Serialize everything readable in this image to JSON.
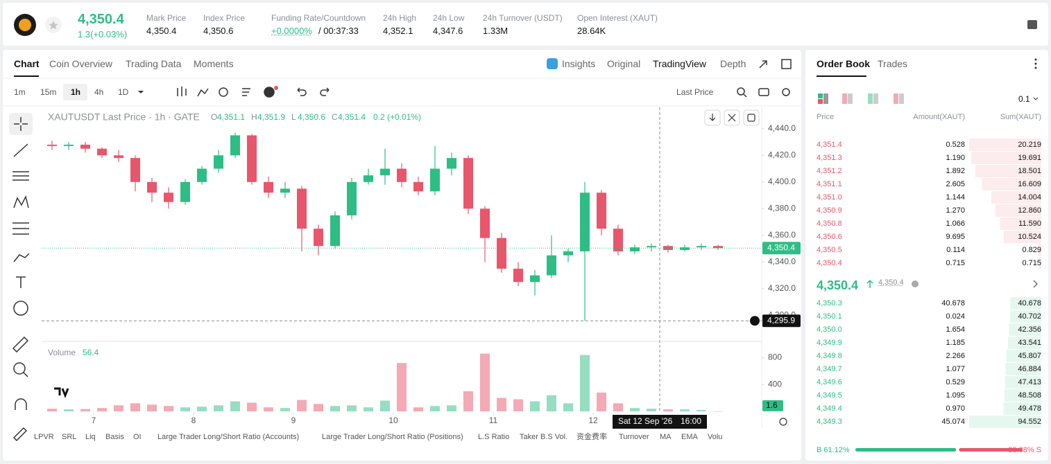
{
  "header": {
    "price": "4,350.4",
    "change": "1.3(+0.03%)",
    "stats": [
      {
        "label": "Mark Price",
        "value": "4,350.4"
      },
      {
        "label": "Index Price",
        "value": "4,350.6"
      },
      {
        "label": "Funding Rate/Countdown",
        "value": "+0.0000%",
        "extra": "/ 00:37:33"
      },
      {
        "label": "24h High",
        "value": "4,352.1"
      },
      {
        "label": "24h Low",
        "value": "4,347.6"
      },
      {
        "label": "24h Turnover (USDT)",
        "value": "1.33M"
      },
      {
        "label": "Open Interest (XAUT)",
        "value": "28.64K"
      }
    ]
  },
  "tabs": [
    "Chart",
    "Coin Overview",
    "Trading Data",
    "Moments"
  ],
  "views": [
    "Insights",
    "Original",
    "TradingView",
    "Depth"
  ],
  "intervals": [
    "1m",
    "15m",
    "1h",
    "4h",
    "1D"
  ],
  "price_type": "Last Price",
  "indicators": [
    "LPVR",
    "SRL",
    "Liq",
    "Basis",
    "OI",
    "Large Trader Long/Short Ratio (Accounts)",
    "Large Trader Long/Short Ratio (Positions)",
    "L.S Ratio",
    "Taker B.S Vol.",
    "资金费率",
    "Turnover",
    "MA",
    "EMA",
    "Volu"
  ],
  "chart_data": {
    "type": "candlestick",
    "legend": {
      "symbol": "XAUTUSDT Last Price · 1h · GATE",
      "items": [
        {
          "key": "O",
          "value": "4,351.1"
        },
        {
          "key": "H",
          "value": "4,351.9"
        },
        {
          "key": "L",
          "value": "4,350.6"
        },
        {
          "key": "C",
          "value": "4,351.4"
        }
      ],
      "change": "0.2 (+0.01%)"
    },
    "volume_title": "Volume",
    "volume_value": 56.4,
    "x": [
      -10,
      -6,
      -2,
      2,
      6,
      10,
      14,
      18,
      22,
      26,
      30,
      34,
      38,
      42,
      46,
      50,
      54,
      58,
      62,
      66,
      70,
      74,
      78,
      82,
      86,
      90,
      94,
      98,
      102,
      106,
      110,
      114,
      118,
      122,
      126,
      130,
      134,
      138,
      142,
      146,
      150
    ],
    "open": [
      4428,
      4427,
      4428,
      4425,
      4420,
      4418,
      4400,
      4392,
      4385,
      4400,
      4410,
      4420,
      4435,
      4400,
      4392,
      4395,
      4365,
      4352,
      4375,
      4400,
      4405,
      4410,
      4400,
      4393,
      4410,
      4418,
      4380,
      4358,
      4335,
      4325,
      4330,
      4345,
      4348,
      4392,
      4365,
      4348,
      4351,
      4352,
      4349,
      4351,
      4352
    ],
    "high": [
      4431,
      4430,
      4430,
      4426,
      4424,
      4420,
      4403,
      4396,
      4402,
      4412,
      4424,
      4437,
      4436,
      4404,
      4400,
      4397,
      4368,
      4378,
      4403,
      4410,
      4425,
      4414,
      4404,
      4427,
      4422,
      4420,
      4382,
      4362,
      4340,
      4334,
      4360,
      4350,
      4400,
      4394,
      4368,
      4353,
      4354,
      4353,
      4353,
      4354,
      4353
    ],
    "low": [
      4424,
      4424,
      4422,
      4418,
      4415,
      4393,
      4385,
      4380,
      4383,
      4398,
      4407,
      4418,
      4398,
      4388,
      4388,
      4348,
      4345,
      4350,
      4372,
      4398,
      4398,
      4396,
      4390,
      4390,
      4405,
      4376,
      4340,
      4332,
      4322,
      4315,
      4328,
      4340,
      4295.9,
      4360,
      4345,
      4346,
      4348,
      4347,
      4348,
      4349,
      4349
    ],
    "close": [
      4427,
      4428,
      4425,
      4420,
      4418,
      4400,
      4392,
      4385,
      4400,
      4410,
      4420,
      4435,
      4400,
      4392,
      4395,
      4365,
      4352,
      4375,
      4400,
      4405,
      4410,
      4400,
      4393,
      4410,
      4418,
      4380,
      4358,
      4335,
      4325,
      4330,
      4345,
      4348,
      4392,
      4365,
      4348,
      4351,
      4352,
      4349,
      4351,
      4352,
      4350.4
    ],
    "volume": [
      40,
      30,
      35,
      50,
      90,
      120,
      100,
      80,
      60,
      70,
      90,
      150,
      130,
      60,
      50,
      170,
      110,
      80,
      90,
      60,
      160,
      720,
      60,
      80,
      90,
      300,
      860,
      200,
      180,
      150,
      240,
      120,
      840,
      280,
      120,
      50,
      40,
      30,
      30,
      20,
      1.6
    ],
    "up_color": "#2ebd85",
    "down_color": "#e8566c",
    "xlim": [
      -12.5,
      160.5
    ],
    "xticks": [
      {
        "value": 0,
        "label": "7"
      },
      {
        "value": 24,
        "label": "8"
      },
      {
        "value": 48,
        "label": "9"
      },
      {
        "value": 72,
        "label": "10"
      },
      {
        "value": 96,
        "label": "11"
      },
      {
        "value": 120,
        "label": "12"
      }
    ],
    "ylim": [
      4282,
      4456
    ],
    "yticks": [
      {
        "value": 4440,
        "label": "4,440.0"
      },
      {
        "value": 4420,
        "label": "4,420.0"
      },
      {
        "value": 4400,
        "label": "4,400.0"
      },
      {
        "value": 4380,
        "label": "4,380.0"
      },
      {
        "value": 4360,
        "label": "4,360.0"
      },
      {
        "value": 4340,
        "label": "4,340.0"
      },
      {
        "value": 4320,
        "label": "4,320.0"
      },
      {
        "value": 4300,
        "label": "4,300.0"
      }
    ],
    "volume_ylim": [
      0,
      1000
    ],
    "volume_yticks": [
      800,
      400
    ],
    "last_price": {
      "value": 4350.4,
      "label": "4,350.4"
    },
    "low_line": {
      "value": 4295.9,
      "label": "4,295.9"
    },
    "crosshair": {
      "x": 136,
      "date": "Sat 12 Sep '26",
      "time": "16:00"
    }
  },
  "order_book": {
    "tabs": [
      "Order Book",
      "Trades"
    ],
    "step": "0.1",
    "columns": [
      "Price",
      "Amount(XAUT)",
      "Sum(XAUT)"
    ],
    "asks": [
      [
        "4,351.4",
        "0.528",
        "20.219"
      ],
      [
        "4,351.3",
        "1.190",
        "19.691"
      ],
      [
        "4,351.2",
        "1.892",
        "18.501"
      ],
      [
        "4,351.1",
        "2.605",
        "16.609"
      ],
      [
        "4,351.0",
        "1.144",
        "14.004"
      ],
      [
        "4,350.9",
        "1.270",
        "12.860"
      ],
      [
        "4,350.8",
        "1.066",
        "11.590"
      ],
      [
        "4,350.6",
        "9.695",
        "10.524"
      ],
      [
        "4,350.5",
        "0.114",
        "0.829"
      ],
      [
        "4,350.4",
        "0.715",
        "0.715"
      ]
    ],
    "mid": "4,350.4",
    "mark": "4,350.4",
    "bids": [
      [
        "4,350.3",
        "40.678",
        "40.678"
      ],
      [
        "4,350.1",
        "0.024",
        "40.702"
      ],
      [
        "4,350.0",
        "1.654",
        "42.356"
      ],
      [
        "4,349.9",
        "1.185",
        "43.541"
      ],
      [
        "4,349.8",
        "2.266",
        "45.807"
      ],
      [
        "4,349.7",
        "1.077",
        "46.884"
      ],
      [
        "4,349.6",
        "0.529",
        "47.413"
      ],
      [
        "4,349.5",
        "1.095",
        "48.508"
      ],
      [
        "4,349.4",
        "0.970",
        "49.478"
      ],
      [
        "4,349.3",
        "45.074",
        "94.552"
      ]
    ],
    "buy": {
      "value": 61.12,
      "label": "B 61.12%"
    },
    "sell": {
      "value": 38.88,
      "label": "38.88% S"
    }
  }
}
